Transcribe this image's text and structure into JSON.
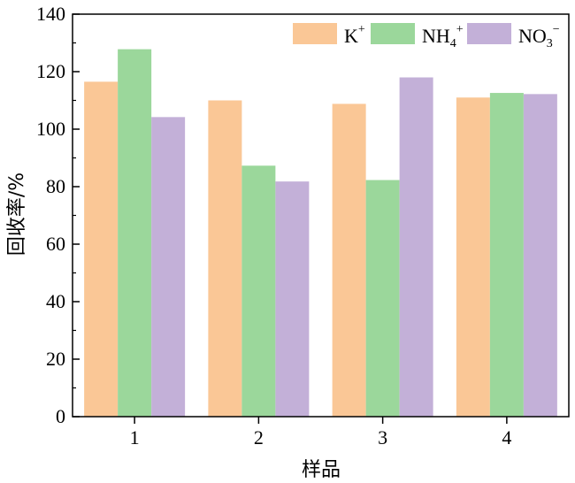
{
  "chart_data": {
    "type": "bar",
    "xlabel": "样品",
    "ylabel": "回收率/%",
    "ylim": [
      0,
      140
    ],
    "yticks": [
      0,
      20,
      40,
      60,
      80,
      100,
      120,
      140
    ],
    "categories": [
      "1",
      "2",
      "3",
      "4"
    ],
    "grid": false,
    "legend_position": "top-right",
    "series": [
      {
        "name": "K",
        "sup": "+",
        "sub": "",
        "color": "#fac796",
        "values": [
          116.5,
          110.0,
          108.8,
          111.0
        ]
      },
      {
        "name": "NH",
        "sup": "+",
        "sub": "4",
        "color": "#9bd79b",
        "values": [
          127.8,
          87.3,
          82.3,
          112.6
        ]
      },
      {
        "name": "NO",
        "sup": "−",
        "sub": "3",
        "color": "#c3b0d8",
        "values": [
          104.2,
          81.8,
          118.0,
          112.2
        ]
      }
    ]
  }
}
